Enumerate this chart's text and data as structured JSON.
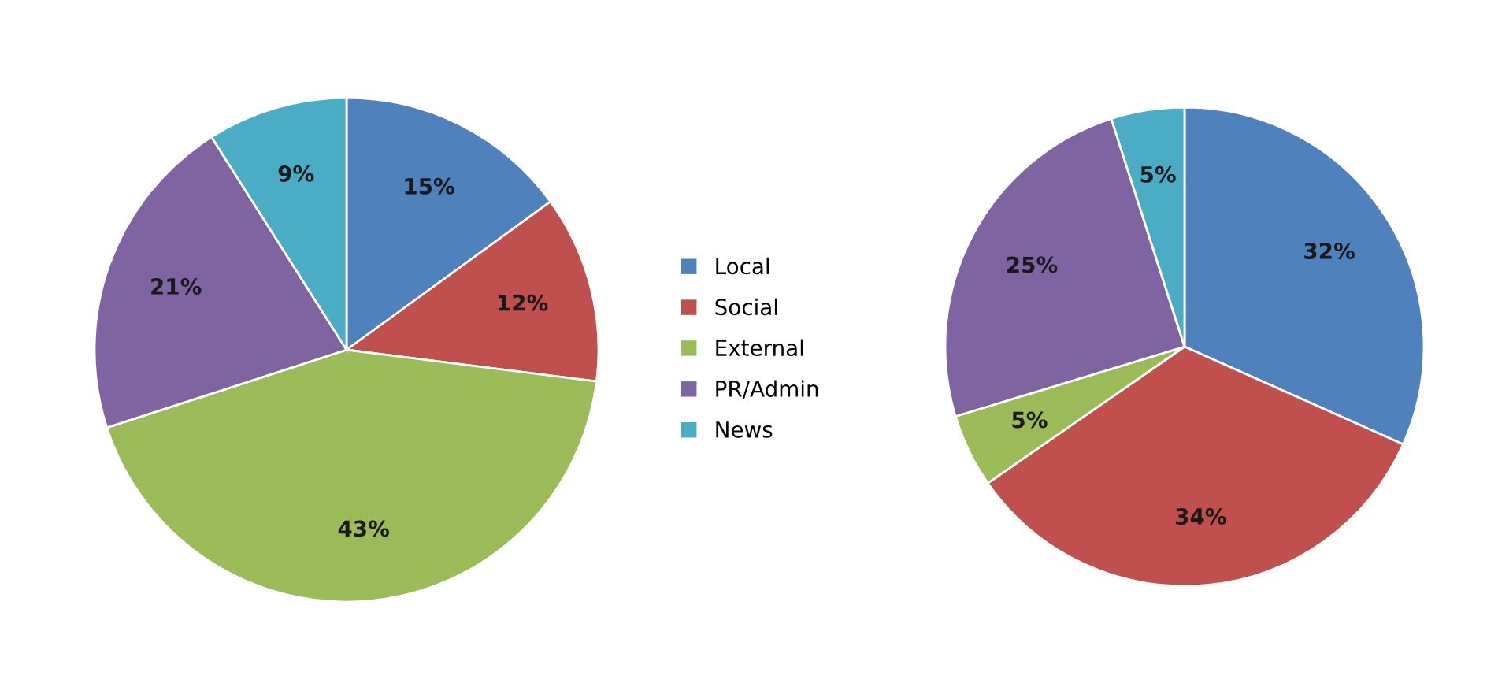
{
  "chart_data": [
    {
      "type": "pie",
      "categories": [
        "Local",
        "Social",
        "External",
        "PR/Admin",
        "News"
      ],
      "values": [
        15,
        12,
        43,
        21,
        9
      ],
      "colors": [
        "#4f81bd",
        "#c0504d",
        "#9bbb59",
        "#8064a2",
        "#4bacc6"
      ],
      "value_labels": [
        "15%",
        "12%",
        "43%",
        "21%",
        "9%"
      ],
      "legend": "right"
    },
    {
      "type": "pie",
      "categories": [
        null,
        null,
        null,
        null,
        null
      ],
      "values": [
        32,
        34,
        5,
        25,
        5
      ],
      "colors": [
        "#4f81bd",
        "#c0504d",
        "#9bbb59",
        "#8064a2",
        "#4bacc6"
      ],
      "value_labels": [
        "32%",
        "34%",
        "5%",
        "25%",
        "5%"
      ]
    }
  ]
}
